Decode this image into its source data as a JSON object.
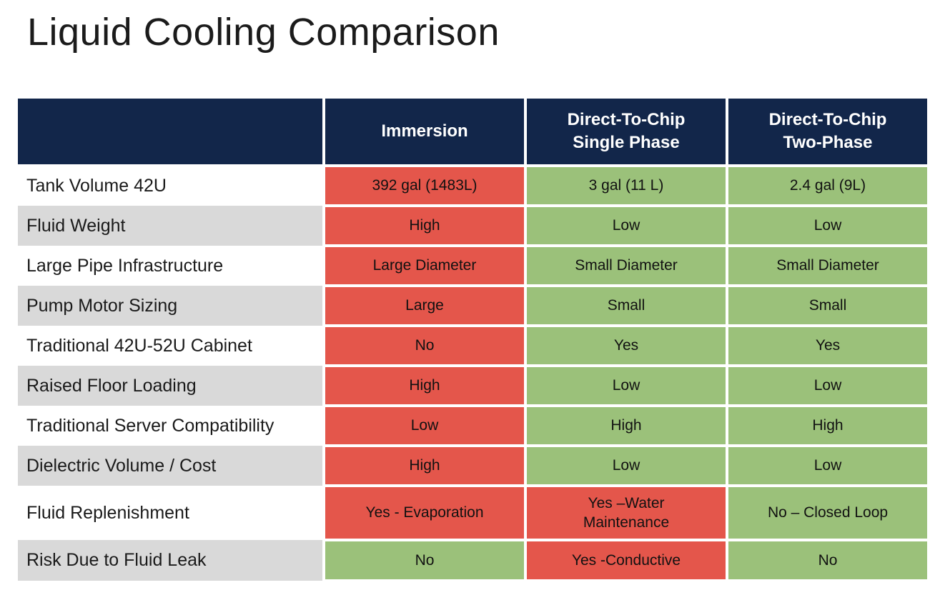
{
  "title": "Liquid Cooling Comparison",
  "colors": {
    "header_bg": "#12264A",
    "header_text": "#FFFFFF",
    "bad": "#E4564B",
    "good": "#9BC17A",
    "row_alt": "#D9D9D9",
    "text": "#1A1A1A"
  },
  "table": {
    "headers": [
      {
        "text": ""
      },
      {
        "text": "Immersion"
      },
      {
        "text": "Direct-To-Chip\nSingle Phase"
      },
      {
        "text": "Direct-To-Chip\nTwo-Phase"
      }
    ],
    "rows": [
      {
        "label": "Tank Volume 42U",
        "cells": [
          {
            "text": "392 gal (1483L)",
            "tone": "bad"
          },
          {
            "text": "3 gal (11 L)",
            "tone": "good"
          },
          {
            "text": "2.4 gal (9L)",
            "tone": "good"
          }
        ]
      },
      {
        "label": "Fluid Weight",
        "cells": [
          {
            "text": "High",
            "tone": "bad"
          },
          {
            "text": "Low",
            "tone": "good"
          },
          {
            "text": "Low",
            "tone": "good"
          }
        ]
      },
      {
        "label": "Large Pipe Infrastructure",
        "cells": [
          {
            "text": "Large Diameter",
            "tone": "bad"
          },
          {
            "text": "Small Diameter",
            "tone": "good"
          },
          {
            "text": "Small Diameter",
            "tone": "good"
          }
        ]
      },
      {
        "label": "Pump Motor Sizing",
        "cells": [
          {
            "text": "Large",
            "tone": "bad"
          },
          {
            "text": "Small",
            "tone": "good"
          },
          {
            "text": "Small",
            "tone": "good"
          }
        ]
      },
      {
        "label": "Traditional 42U-52U Cabinet",
        "cells": [
          {
            "text": "No",
            "tone": "bad"
          },
          {
            "text": "Yes",
            "tone": "good"
          },
          {
            "text": "Yes",
            "tone": "good"
          }
        ]
      },
      {
        "label": "Raised Floor Loading",
        "cells": [
          {
            "text": "High",
            "tone": "bad"
          },
          {
            "text": "Low",
            "tone": "good"
          },
          {
            "text": "Low",
            "tone": "good"
          }
        ]
      },
      {
        "label": "Traditional Server Compatibility",
        "cells": [
          {
            "text": "Low",
            "tone": "bad"
          },
          {
            "text": "High",
            "tone": "good"
          },
          {
            "text": "High",
            "tone": "good"
          }
        ]
      },
      {
        "label": "Dielectric Volume / Cost",
        "cells": [
          {
            "text": "High",
            "tone": "bad"
          },
          {
            "text": "Low",
            "tone": "good"
          },
          {
            "text": "Low",
            "tone": "good"
          }
        ]
      },
      {
        "label": "Fluid Replenishment",
        "cells": [
          {
            "text": "Yes - Evaporation",
            "tone": "bad"
          },
          {
            "text": "Yes –Water\nMaintenance",
            "tone": "bad"
          },
          {
            "text": "No – Closed Loop",
            "tone": "good"
          }
        ]
      },
      {
        "label": "Risk Due to Fluid Leak",
        "cells": [
          {
            "text": "No",
            "tone": "good"
          },
          {
            "text": "Yes -Conductive",
            "tone": "bad"
          },
          {
            "text": "No",
            "tone": "good"
          }
        ]
      }
    ]
  }
}
